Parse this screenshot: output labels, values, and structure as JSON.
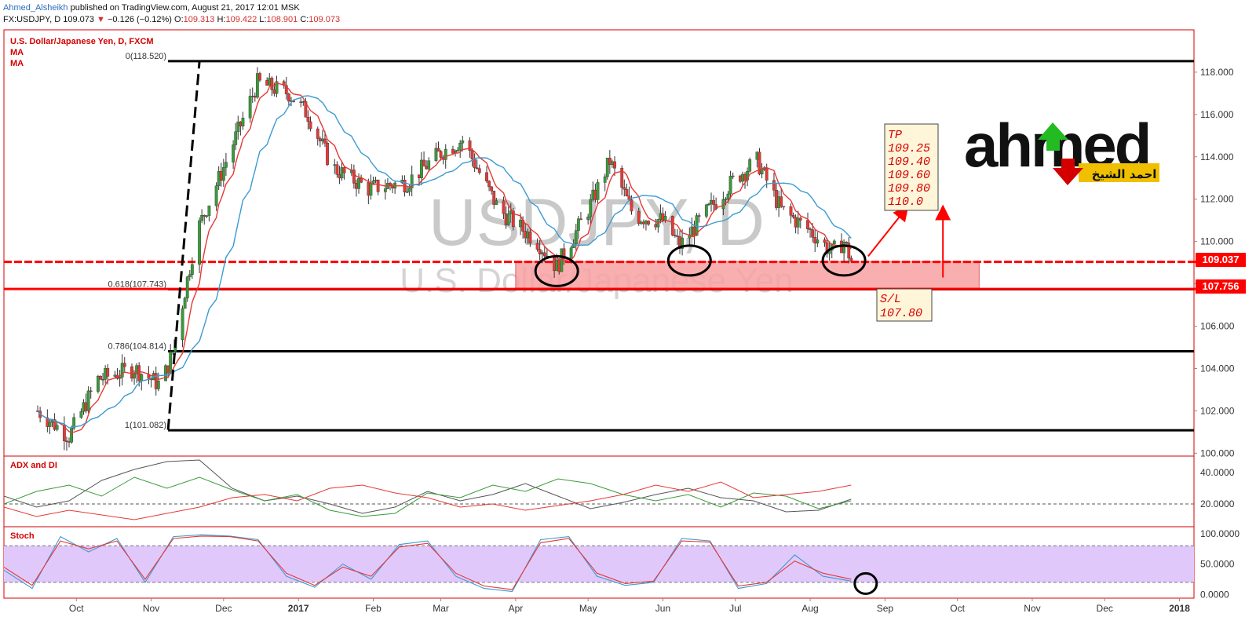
{
  "header": {
    "author": "Ahmed_Alsheikh",
    "published": "published on TradingView.com, August 21, 2017 12:01 MSK",
    "symbol": "FX:USDJPY, D",
    "last": "109.073",
    "down_arrow": "▼",
    "change": "−0.126 (−0.12%)",
    "o_label": "O:",
    "o_value": "109.313",
    "h_label": "H:",
    "h_value": "109.422",
    "l_label": "L:",
    "l_value": "108.901",
    "c_label": "C:",
    "c_value": "109.073"
  },
  "legend": {
    "title": "U.S. Dollar/Japanese Yen, D, FXCM",
    "ma1": "MA",
    "ma2": "MA"
  },
  "watermark": {
    "big": "USDJPY, D",
    "small": "U.S. Dollar/Japanese Yen"
  },
  "logo": {
    "latin": "ahmed",
    "arabic": "احمد الشيخ"
  },
  "annotations": {
    "tp_lines": [
      "TP",
      "109.25",
      "109.40",
      "109.60",
      "109.80",
      "110.0"
    ],
    "sl_lines": [
      "S/L",
      "107.80"
    ]
  },
  "price_labels": {
    "upper": "109.037",
    "lower": "107.756"
  },
  "fib_labels": [
    "0(118.520)",
    "0.618(107.743)",
    "0.786(104.814)",
    "1(101.082)"
  ],
  "panels": {
    "adx": "ADX and DI",
    "stoch": "Stoch"
  },
  "colors": {
    "up_candle": "#3a9a3a",
    "down_candle": "#e53935",
    "ma_fast": "#e53935",
    "ma_slow": "#3b9bd1",
    "support": "#ff0000",
    "zone": "#f8a1a1",
    "stoch_band": "#e1c8fb",
    "adx": "#555555",
    "di_plus": "#3a9a3a",
    "di_minus": "#e53935"
  },
  "chart_data": {
    "type": "candlestick",
    "x_axis_labels": [
      "Oct",
      "Nov",
      "Dec",
      "2017",
      "Feb",
      "Mar",
      "Apr",
      "May",
      "Jun",
      "Jul",
      "Aug",
      "Sep",
      "Oct",
      "Nov",
      "Dec",
      "2018"
    ],
    "y_ticks": [
      "118.000",
      "116.000",
      "114.000",
      "112.000",
      "110.000",
      "108.000",
      "106.000",
      "104.000",
      "102.000",
      "100.000"
    ],
    "ylim": [
      99.9,
      120.0
    ],
    "close_series": {
      "x": [
        "2016-09-15",
        "2016-09-28",
        "2016-10-10",
        "2016-10-25",
        "2016-11-05",
        "2016-11-10",
        "2016-11-20",
        "2016-12-01",
        "2016-12-15",
        "2016-12-28",
        "2017-01-05",
        "2017-01-15",
        "2017-01-30",
        "2017-02-15",
        "2017-03-01",
        "2017-03-10",
        "2017-03-25",
        "2017-04-10",
        "2017-04-18",
        "2017-05-01",
        "2017-05-10",
        "2017-05-20",
        "2017-06-01",
        "2017-06-08",
        "2017-06-20",
        "2017-07-01",
        "2017-07-10",
        "2017-07-20",
        "2017-08-01",
        "2017-08-10",
        "2017-08-15",
        "2017-08-18"
      ],
      "y": [
        102.0,
        100.8,
        103.5,
        104.0,
        103.2,
        104.8,
        110.5,
        113.5,
        117.5,
        117.0,
        116.0,
        113.5,
        112.5,
        112.8,
        114.2,
        114.8,
        111.5,
        110.0,
        108.8,
        111.5,
        113.8,
        111.2,
        111.0,
        109.8,
        111.5,
        113.0,
        113.8,
        111.5,
        110.5,
        109.5,
        110.0,
        109.1
      ]
    },
    "fibonacci": [
      {
        "level": "0",
        "price": 118.52
      },
      {
        "level": "0.618",
        "price": 107.743
      },
      {
        "level": "0.786",
        "price": 104.814
      },
      {
        "level": "1",
        "price": 101.082
      }
    ],
    "support_lines": [
      109.037,
      107.756
    ],
    "zone": {
      "from": "2017-04-01",
      "to": "2017-10-10",
      "top": 109.05,
      "bottom": 107.8
    },
    "take_profit": [
      109.25,
      109.4,
      109.6,
      109.8,
      110.0
    ],
    "stop_loss": 107.8,
    "adx_panel": {
      "title": "ADX and DI",
      "y_ticks": [
        "40.0000",
        "20.0000"
      ],
      "ylim": [
        6,
        50
      ],
      "dashed_level": 20,
      "series": [
        {
          "key": "adx",
          "values": [
            25,
            18,
            22,
            35,
            42,
            47,
            48,
            30,
            22,
            25,
            20,
            14,
            18,
            28,
            22,
            26,
            33,
            25,
            17,
            21,
            26,
            30,
            24,
            22,
            15,
            16,
            23
          ]
        },
        {
          "key": "di_plus",
          "values": [
            20,
            28,
            32,
            25,
            37,
            30,
            37,
            29,
            22,
            26,
            16,
            12,
            14,
            27,
            24,
            32,
            28,
            36,
            33,
            26,
            22,
            26,
            18,
            27,
            25,
            17,
            22
          ]
        },
        {
          "key": "di_minus",
          "values": [
            18,
            12,
            16,
            13,
            10,
            14,
            18,
            24,
            26,
            22,
            30,
            32,
            27,
            24,
            18,
            20,
            16,
            19,
            22,
            26,
            32,
            28,
            34,
            24,
            26,
            28,
            32
          ]
        }
      ]
    },
    "stoch_panel": {
      "title": "Stoch",
      "y_ticks": [
        "100.0000",
        "50.0000",
        "0.0000"
      ],
      "ylim": [
        -6,
        110
      ],
      "band": [
        20,
        80
      ],
      "series": [
        {
          "key": "k",
          "values": [
            40,
            10,
            95,
            70,
            92,
            20,
            95,
            98,
            96,
            90,
            30,
            12,
            50,
            25,
            82,
            88,
            30,
            10,
            5,
            90,
            95,
            30,
            15,
            20,
            92,
            88,
            10,
            18,
            65,
            30,
            22
          ]
        },
        {
          "key": "d",
          "values": [
            45,
            15,
            88,
            75,
            88,
            25,
            92,
            96,
            95,
            88,
            35,
            15,
            45,
            30,
            78,
            84,
            35,
            14,
            8,
            85,
            92,
            35,
            18,
            22,
            88,
            86,
            14,
            20,
            55,
            35,
            25
          ]
        }
      ]
    }
  }
}
